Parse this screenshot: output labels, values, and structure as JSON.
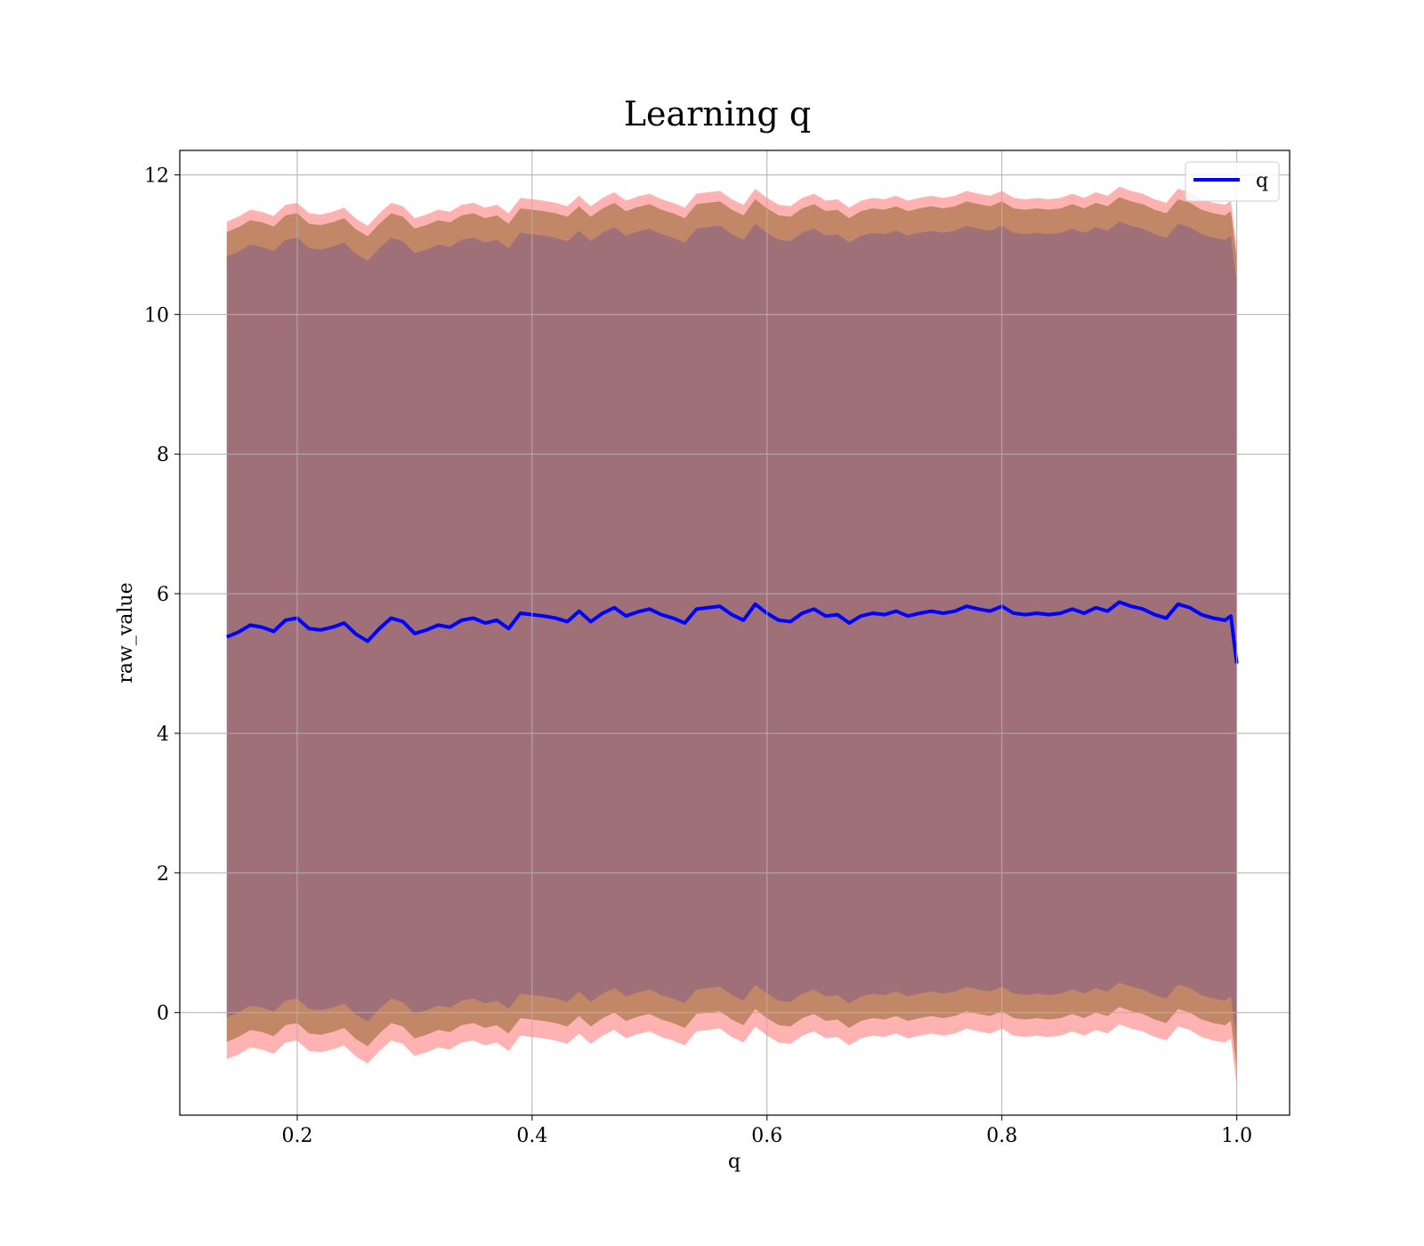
{
  "chart_data": {
    "type": "line",
    "title": "Learning q",
    "xlabel": "q",
    "ylabel": "raw_value",
    "xlim": [
      0.1,
      1.045
    ],
    "ylim": [
      -1.47,
      12.35
    ],
    "xticks": [
      0.2,
      0.4,
      0.6,
      0.8,
      1.0
    ],
    "xtick_labels": [
      "0.2",
      "0.4",
      "0.6",
      "0.8",
      "1.0"
    ],
    "yticks": [
      0,
      2,
      4,
      6,
      8,
      10,
      12
    ],
    "ytick_labels": [
      "0",
      "2",
      "4",
      "6",
      "8",
      "10",
      "12"
    ],
    "grid": true,
    "legend": {
      "placement": "top-right",
      "entries": [
        "q"
      ]
    },
    "colors": {
      "line": "#0000ff",
      "band_outer": "#ff7f7f",
      "band_middle": "#a0703e",
      "band_inner": "#7a2f45"
    },
    "series": [
      {
        "name": "q",
        "x": [
          0.14,
          0.15,
          0.16,
          0.17,
          0.18,
          0.19,
          0.2,
          0.21,
          0.22,
          0.23,
          0.24,
          0.25,
          0.26,
          0.27,
          0.28,
          0.29,
          0.3,
          0.31,
          0.32,
          0.33,
          0.34,
          0.35,
          0.36,
          0.37,
          0.38,
          0.39,
          0.4,
          0.41,
          0.42,
          0.43,
          0.44,
          0.45,
          0.46,
          0.47,
          0.48,
          0.49,
          0.5,
          0.51,
          0.52,
          0.53,
          0.54,
          0.55,
          0.56,
          0.57,
          0.58,
          0.59,
          0.6,
          0.61,
          0.62,
          0.63,
          0.64,
          0.65,
          0.66,
          0.67,
          0.68,
          0.69,
          0.7,
          0.71,
          0.72,
          0.73,
          0.74,
          0.75,
          0.76,
          0.77,
          0.78,
          0.79,
          0.8,
          0.81,
          0.82,
          0.83,
          0.84,
          0.85,
          0.86,
          0.87,
          0.88,
          0.89,
          0.9,
          0.91,
          0.92,
          0.93,
          0.94,
          0.95,
          0.96,
          0.97,
          0.98,
          0.99,
          0.995,
          1.0
        ],
        "y": [
          5.38,
          5.45,
          5.55,
          5.52,
          5.46,
          5.62,
          5.65,
          5.5,
          5.48,
          5.52,
          5.58,
          5.42,
          5.32,
          5.5,
          5.65,
          5.6,
          5.43,
          5.48,
          5.55,
          5.52,
          5.62,
          5.65,
          5.58,
          5.62,
          5.5,
          5.72,
          5.7,
          5.68,
          5.65,
          5.6,
          5.75,
          5.6,
          5.72,
          5.8,
          5.68,
          5.74,
          5.78,
          5.7,
          5.65,
          5.58,
          5.78,
          5.8,
          5.82,
          5.7,
          5.62,
          5.85,
          5.72,
          5.62,
          5.6,
          5.72,
          5.78,
          5.68,
          5.7,
          5.58,
          5.68,
          5.72,
          5.7,
          5.75,
          5.68,
          5.72,
          5.75,
          5.72,
          5.75,
          5.82,
          5.78,
          5.75,
          5.82,
          5.72,
          5.7,
          5.72,
          5.7,
          5.72,
          5.78,
          5.72,
          5.8,
          5.75,
          5.88,
          5.82,
          5.78,
          5.7,
          5.65,
          5.85,
          5.8,
          5.7,
          5.65,
          5.62,
          5.68,
          5.0
        ]
      }
    ],
    "bands": [
      {
        "role": "outer",
        "lower": -0.6,
        "upper": 0.5
      },
      {
        "role": "middle",
        "lower": -0.35,
        "upper": 0.35
      },
      {
        "role": "inner",
        "lower": -5.45,
        "upper": 5.45
      }
    ]
  }
}
